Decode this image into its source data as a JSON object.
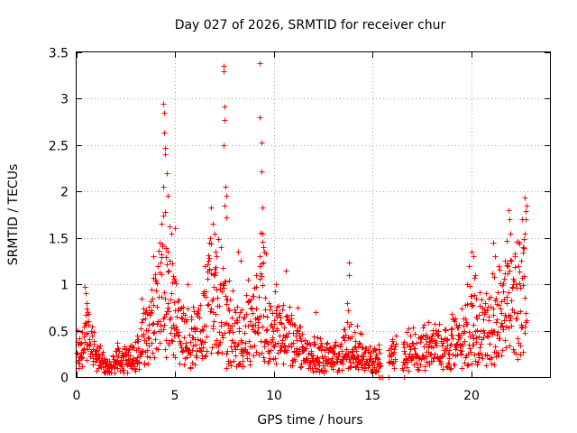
{
  "chart_data": {
    "type": "scatter",
    "title": "Day 027 of 2026, SRMTID for receiver chur",
    "xlabel": "GPS time / hours",
    "ylabel": "SRMTID / TECUs",
    "xlim": [
      0,
      24
    ],
    "ylim": [
      0,
      3.5
    ],
    "xticks": [
      0,
      5,
      10,
      15,
      20
    ],
    "xtick_labels": [
      "0",
      "5",
      "10",
      "15",
      "20"
    ],
    "yticks": [
      0,
      0.5,
      1,
      1.5,
      2,
      2.5,
      3,
      3.5
    ],
    "ytick_labels": [
      "0",
      "0.5",
      "1",
      "1.5",
      "2",
      "2.5",
      "3",
      "3.5"
    ],
    "grid": true,
    "marker": "+",
    "color": "#ff0000",
    "series": [
      {
        "name": "SRMTID",
        "profile": [
          {
            "x": 0.0,
            "y": 0.3
          },
          {
            "x": 0.3,
            "y": 0.4
          },
          {
            "x": 0.5,
            "y": 0.55
          },
          {
            "x": 0.8,
            "y": 0.3
          },
          {
            "x": 1.2,
            "y": 0.22
          },
          {
            "x": 1.6,
            "y": 0.13
          },
          {
            "x": 2.0,
            "y": 0.22
          },
          {
            "x": 2.5,
            "y": 0.2
          },
          {
            "x": 3.0,
            "y": 0.3
          },
          {
            "x": 3.5,
            "y": 0.5
          },
          {
            "x": 4.0,
            "y": 0.7
          },
          {
            "x": 4.4,
            "y": 1.05
          },
          {
            "x": 4.8,
            "y": 0.9
          },
          {
            "x": 5.2,
            "y": 0.6
          },
          {
            "x": 5.8,
            "y": 0.4
          },
          {
            "x": 6.3,
            "y": 0.55
          },
          {
            "x": 6.8,
            "y": 1.0
          },
          {
            "x": 7.2,
            "y": 0.9
          },
          {
            "x": 7.6,
            "y": 0.6
          },
          {
            "x": 8.0,
            "y": 0.55
          },
          {
            "x": 8.5,
            "y": 0.5
          },
          {
            "x": 9.0,
            "y": 0.7
          },
          {
            "x": 9.4,
            "y": 0.95
          },
          {
            "x": 9.8,
            "y": 0.55
          },
          {
            "x": 10.5,
            "y": 0.5
          },
          {
            "x": 11.0,
            "y": 0.4
          },
          {
            "x": 11.5,
            "y": 0.3
          },
          {
            "x": 12.0,
            "y": 0.25
          },
          {
            "x": 13.0,
            "y": 0.22
          },
          {
            "x": 13.8,
            "y": 0.35
          },
          {
            "x": 14.5,
            "y": 0.25
          },
          {
            "x": 15.2,
            "y": 0.2
          },
          {
            "x": 16.0,
            "y": 0.25
          },
          {
            "x": 16.5,
            "y": 0.3
          },
          {
            "x": 17.5,
            "y": 0.35
          },
          {
            "x": 18.5,
            "y": 0.35
          },
          {
            "x": 19.5,
            "y": 0.45
          },
          {
            "x": 20.0,
            "y": 0.65
          },
          {
            "x": 20.5,
            "y": 0.55
          },
          {
            "x": 21.0,
            "y": 0.6
          },
          {
            "x": 21.5,
            "y": 0.75
          },
          {
            "x": 22.0,
            "y": 0.95
          },
          {
            "x": 22.5,
            "y": 0.9
          },
          {
            "x": 22.8,
            "y": 1.15
          }
        ],
        "gaps": [
          [
            15.4,
            15.8
          ],
          [
            16.2,
            16.5
          ]
        ],
        "zero_points": [
          15.3,
          15.4,
          15.5,
          15.8,
          16.6
        ],
        "peaks": [
          {
            "x": 4.4,
            "y": 2.95
          },
          {
            "x": 4.45,
            "y": 2.85
          },
          {
            "x": 4.45,
            "y": 2.63
          },
          {
            "x": 4.5,
            "y": 2.47
          },
          {
            "x": 4.5,
            "y": 2.4
          },
          {
            "x": 4.55,
            "y": 2.2
          },
          {
            "x": 4.4,
            "y": 2.05
          },
          {
            "x": 4.6,
            "y": 1.95
          },
          {
            "x": 4.5,
            "y": 1.78
          },
          {
            "x": 4.3,
            "y": 1.65
          },
          {
            "x": 4.8,
            "y": 1.55
          },
          {
            "x": 5.0,
            "y": 1.6
          },
          {
            "x": 4.2,
            "y": 1.45
          },
          {
            "x": 6.8,
            "y": 1.83
          },
          {
            "x": 6.9,
            "y": 1.65
          },
          {
            "x": 7.0,
            "y": 1.55
          },
          {
            "x": 6.7,
            "y": 1.45
          },
          {
            "x": 7.45,
            "y": 3.35
          },
          {
            "x": 7.45,
            "y": 3.3
          },
          {
            "x": 7.5,
            "y": 2.92
          },
          {
            "x": 7.5,
            "y": 2.77
          },
          {
            "x": 7.45,
            "y": 2.5
          },
          {
            "x": 7.55,
            "y": 2.05
          },
          {
            "x": 7.6,
            "y": 1.95
          },
          {
            "x": 7.5,
            "y": 1.85
          },
          {
            "x": 7.6,
            "y": 1.72
          },
          {
            "x": 7.3,
            "y": 1.4
          },
          {
            "x": 7.1,
            "y": 1.3
          },
          {
            "x": 9.3,
            "y": 3.38
          },
          {
            "x": 9.3,
            "y": 2.8
          },
          {
            "x": 9.35,
            "y": 2.53
          },
          {
            "x": 9.35,
            "y": 2.22
          },
          {
            "x": 9.4,
            "y": 1.83
          },
          {
            "x": 9.4,
            "y": 1.55
          },
          {
            "x": 9.45,
            "y": 1.4
          },
          {
            "x": 9.5,
            "y": 1.35
          },
          {
            "x": 9.3,
            "y": 1.2
          },
          {
            "x": 8.2,
            "y": 1.35
          },
          {
            "x": 8.3,
            "y": 1.25
          },
          {
            "x": 10.6,
            "y": 1.15
          },
          {
            "x": 10.1,
            "y": 1.0
          },
          {
            "x": 13.8,
            "y": 1.23
          },
          {
            "x": 13.8,
            "y": 1.1
          },
          {
            "x": 13.7,
            "y": 0.8
          },
          {
            "x": 13.75,
            "y": 0.72
          },
          {
            "x": 0.4,
            "y": 0.97
          },
          {
            "x": 0.45,
            "y": 0.9
          },
          {
            "x": 0.5,
            "y": 0.8
          },
          {
            "x": 0.55,
            "y": 0.7
          },
          {
            "x": 21.9,
            "y": 1.8
          },
          {
            "x": 21.95,
            "y": 1.7
          },
          {
            "x": 22.0,
            "y": 1.55
          },
          {
            "x": 21.8,
            "y": 1.47
          },
          {
            "x": 22.7,
            "y": 1.93
          },
          {
            "x": 22.8,
            "y": 1.85
          },
          {
            "x": 22.75,
            "y": 1.7
          },
          {
            "x": 22.7,
            "y": 1.55
          },
          {
            "x": 22.65,
            "y": 1.4
          },
          {
            "x": 21.1,
            "y": 1.45
          },
          {
            "x": 21.2,
            "y": 1.3
          },
          {
            "x": 20.0,
            "y": 1.35
          },
          {
            "x": 20.1,
            "y": 1.3
          },
          {
            "x": 19.9,
            "y": 1.2
          },
          {
            "x": 20.2,
            "y": 1.1
          },
          {
            "x": 19.8,
            "y": 1.0
          },
          {
            "x": 21.4,
            "y": 1.2
          },
          {
            "x": 21.7,
            "y": 1.25
          },
          {
            "x": 22.2,
            "y": 1.3
          },
          {
            "x": 22.4,
            "y": 1.2
          },
          {
            "x": 4.6,
            "y": 1.35
          },
          {
            "x": 4.7,
            "y": 1.25
          },
          {
            "x": 3.9,
            "y": 1.3
          },
          {
            "x": 4.1,
            "y": 1.2
          },
          {
            "x": 6.5,
            "y": 1.2
          },
          {
            "x": 7.0,
            "y": 1.1
          },
          {
            "x": 9.1,
            "y": 1.1
          },
          {
            "x": 8.7,
            "y": 1.05
          },
          {
            "x": 5.6,
            "y": 1.0
          },
          {
            "x": 3.3,
            "y": 0.85
          },
          {
            "x": 12.1,
            "y": 0.7
          },
          {
            "x": 11.2,
            "y": 0.75
          },
          {
            "x": 14.2,
            "y": 0.55
          },
          {
            "x": 7.6,
            "y": 0.1
          },
          {
            "x": 7.7,
            "y": 0.15
          }
        ]
      }
    ]
  }
}
